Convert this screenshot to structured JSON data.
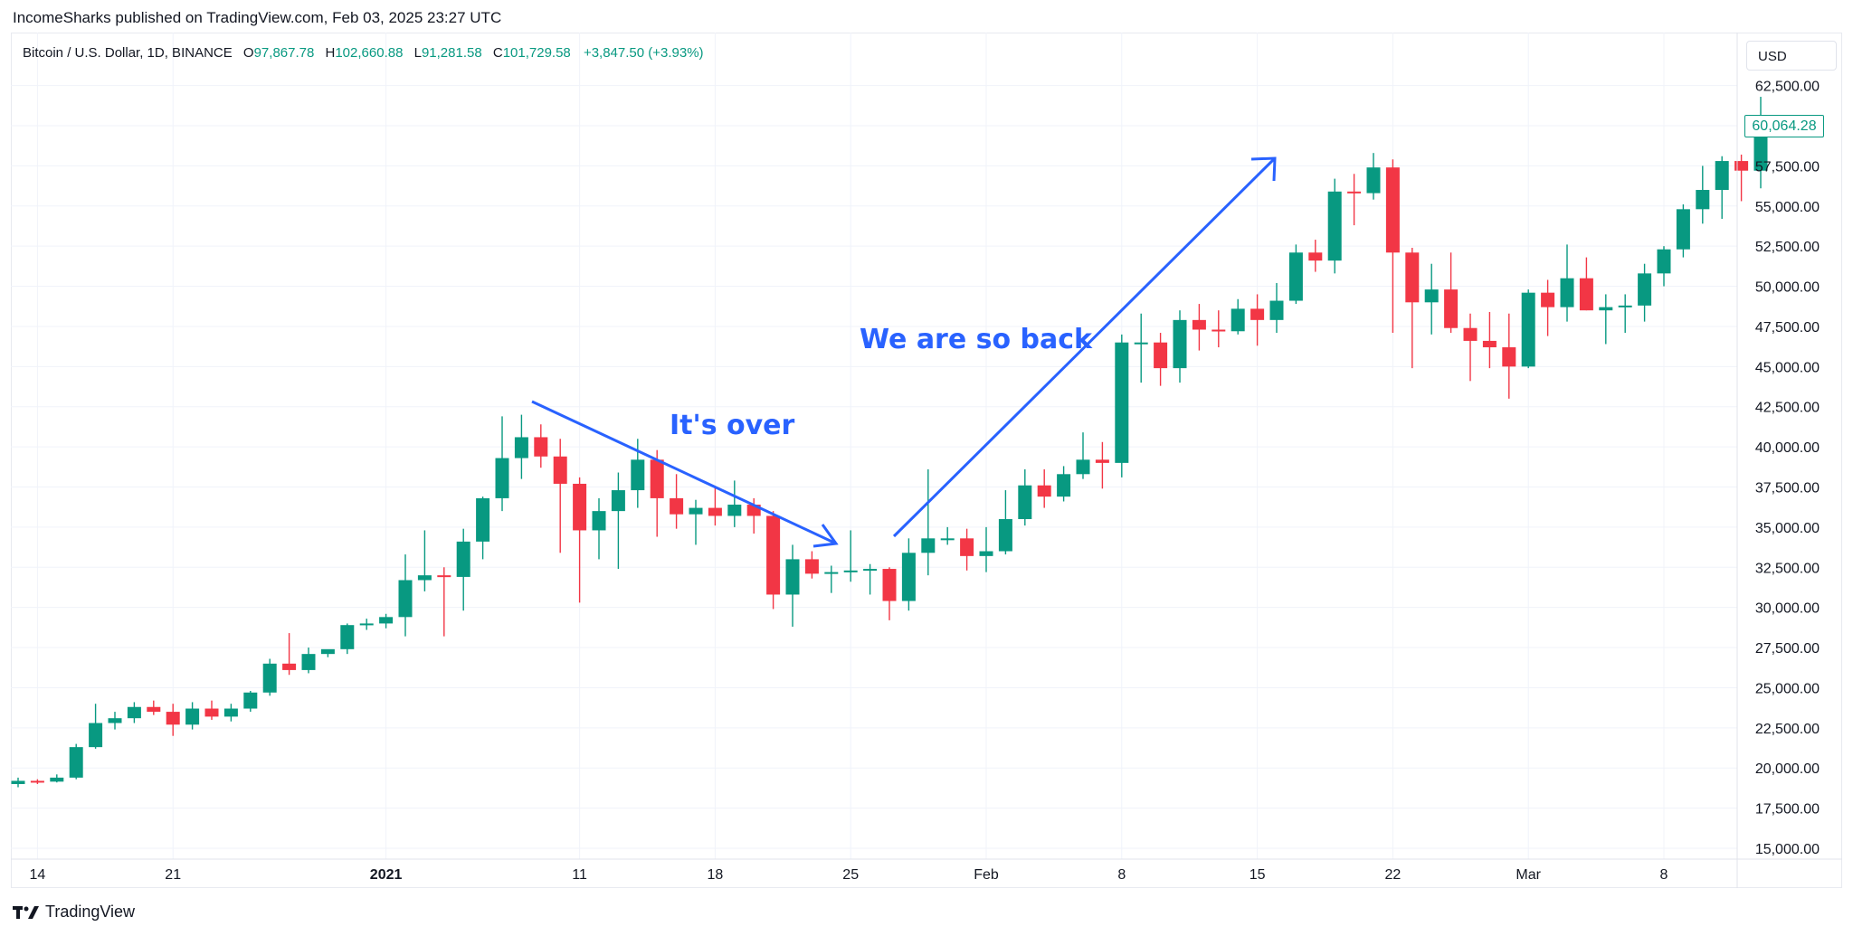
{
  "header": {
    "publisher_line": "IncomeSharks published on TradingView.com, Feb 03, 2025 23:27 UTC"
  },
  "legend": {
    "symbol": "Bitcoin / U.S. Dollar, 1D, BINANCE",
    "open_label": "O",
    "open": "97,867.78",
    "high_label": "H",
    "high": "102,660.88",
    "low_label": "L",
    "low": "91,281.58",
    "close_label": "C",
    "close": "101,729.58",
    "change": "+3,847.50 (+3.93%)"
  },
  "currency": "USD",
  "last_price_label": "60,064.28",
  "footer": {
    "brand": "TradingView"
  },
  "colors": {
    "up": "#089981",
    "down": "#f23645",
    "annotation": "#2962ff",
    "grid": "#f0f3fa"
  },
  "chart_data": {
    "type": "candlestick",
    "ylim": [
      14000,
      63500
    ],
    "y_ticks": [
      15000,
      17500,
      20000,
      22500,
      25000,
      27500,
      30000,
      32500,
      35000,
      37500,
      40000,
      42500,
      45000,
      47500,
      50000,
      52500,
      55000,
      57500,
      60000,
      62500
    ],
    "y_tick_labels": [
      "15,000.00",
      "17,500.00",
      "20,000.00",
      "22,500.00",
      "25,000.00",
      "27,500.00",
      "30,000.00",
      "32,500.00",
      "35,000.00",
      "37,500.00",
      "40,000.00",
      "42,500.00",
      "45,000.00",
      "47,500.00",
      "50,000.00",
      "52,500.00",
      "55,000.00",
      "57,500.00",
      "60,000.00",
      "62,500.00"
    ],
    "x_ticks": [
      {
        "index": 1,
        "label": "14",
        "bold": false
      },
      {
        "index": 8,
        "label": "21",
        "bold": false
      },
      {
        "index": 19,
        "label": "2021",
        "bold": true
      },
      {
        "index": 29,
        "label": "11",
        "bold": false
      },
      {
        "index": 36,
        "label": "18",
        "bold": false
      },
      {
        "index": 43,
        "label": "25",
        "bold": false
      },
      {
        "index": 50,
        "label": "Feb",
        "bold": false
      },
      {
        "index": 57,
        "label": "8",
        "bold": false
      },
      {
        "index": 64,
        "label": "15",
        "bold": false
      },
      {
        "index": 71,
        "label": "22",
        "bold": false
      },
      {
        "index": 78,
        "label": "Mar",
        "bold": false
      },
      {
        "index": 85,
        "label": "8",
        "bold": false
      }
    ],
    "candles": [
      [
        19000,
        19400,
        18800,
        19200
      ],
      [
        19200,
        19300,
        19000,
        19150
      ],
      [
        19150,
        19600,
        19100,
        19400
      ],
      [
        19400,
        21500,
        19300,
        21300
      ],
      [
        21300,
        24000,
        21200,
        22800
      ],
      [
        22800,
        23500,
        22400,
        23100
      ],
      [
        23100,
        24100,
        22800,
        23800
      ],
      [
        23800,
        24200,
        23300,
        23500
      ],
      [
        23500,
        24000,
        22000,
        22700
      ],
      [
        22700,
        24100,
        22400,
        23700
      ],
      [
        23700,
        24200,
        23000,
        23200
      ],
      [
        23200,
        24000,
        22900,
        23700
      ],
      [
        23700,
        24800,
        23500,
        24700
      ],
      [
        24700,
        26800,
        24500,
        26500
      ],
      [
        26500,
        28400,
        25800,
        26100
      ],
      [
        26100,
        27500,
        25900,
        27100
      ],
      [
        27100,
        27300,
        26900,
        27400
      ],
      [
        27400,
        29000,
        27100,
        28900
      ],
      [
        28900,
        29300,
        28600,
        29000
      ],
      [
        29000,
        29600,
        28700,
        29400
      ],
      [
        29400,
        33300,
        28200,
        31700
      ],
      [
        31700,
        34800,
        31000,
        32000
      ],
      [
        32000,
        32500,
        28200,
        31900
      ],
      [
        31900,
        34900,
        29800,
        34100
      ],
      [
        34100,
        36900,
        33000,
        36800
      ],
      [
        36800,
        41900,
        36000,
        39300
      ],
      [
        39300,
        42000,
        38000,
        40600
      ],
      [
        40600,
        41400,
        38700,
        39400
      ],
      [
        39400,
        40500,
        33400,
        37700
      ],
      [
        37700,
        38100,
        30300,
        34800
      ],
      [
        34800,
        36800,
        33000,
        36000
      ],
      [
        36000,
        38400,
        32400,
        37300
      ],
      [
        37300,
        40500,
        36200,
        39200
      ],
      [
        39200,
        39800,
        34400,
        36800
      ],
      [
        36800,
        38300,
        34900,
        35800
      ],
      [
        35800,
        36700,
        33900,
        36200
      ],
      [
        36200,
        37500,
        35100,
        35700
      ],
      [
        35700,
        37900,
        35000,
        36400
      ],
      [
        36400,
        36800,
        34600,
        35700
      ],
      [
        35700,
        36000,
        29900,
        30800
      ],
      [
        30800,
        33900,
        28800,
        33000
      ],
      [
        33000,
        33500,
        31800,
        32100
      ],
      [
        32100,
        32600,
        30900,
        32200
      ],
      [
        32200,
        34800,
        31600,
        32300
      ],
      [
        32300,
        32700,
        30800,
        32400
      ],
      [
        32400,
        32500,
        29200,
        30400
      ],
      [
        30400,
        34300,
        29800,
        33400
      ],
      [
        33400,
        38600,
        32000,
        34300
      ],
      [
        34300,
        35000,
        33900,
        34300
      ],
      [
        34300,
        34900,
        32300,
        33200
      ],
      [
        33200,
        35000,
        32200,
        33500
      ],
      [
        33500,
        37300,
        33300,
        35500
      ],
      [
        35500,
        38600,
        35100,
        37600
      ],
      [
        37600,
        38600,
        36200,
        36900
      ],
      [
        36900,
        38800,
        36600,
        38300
      ],
      [
        38300,
        40900,
        38000,
        39200
      ],
      [
        39200,
        40300,
        37400,
        39000
      ],
      [
        39000,
        47000,
        38100,
        46500
      ],
      [
        46500,
        48300,
        44000,
        46500
      ],
      [
        46500,
        47100,
        43800,
        44900
      ],
      [
        44900,
        48500,
        44000,
        47900
      ],
      [
        47900,
        48900,
        46000,
        47300
      ],
      [
        47300,
        48500,
        46200,
        47200
      ],
      [
        47200,
        49200,
        47000,
        48600
      ],
      [
        48600,
        49500,
        46300,
        47900
      ],
      [
        47900,
        50200,
        47100,
        49100
      ],
      [
        49100,
        52600,
        48900,
        52100
      ],
      [
        52100,
        52900,
        50900,
        51600
      ],
      [
        51600,
        56700,
        50800,
        55900
      ],
      [
        55900,
        57000,
        53800,
        55800
      ],
      [
        55800,
        58300,
        55400,
        57400
      ],
      [
        57400,
        57900,
        47100,
        52100
      ],
      [
        52100,
        52400,
        44900,
        49000
      ],
      [
        49000,
        51400,
        47000,
        49800
      ],
      [
        49800,
        52100,
        47100,
        47400
      ],
      [
        47400,
        48300,
        44100,
        46600
      ],
      [
        46600,
        48400,
        44900,
        46200
      ],
      [
        46200,
        48300,
        43000,
        45000
      ],
      [
        45000,
        49800,
        44900,
        49600
      ],
      [
        49600,
        50400,
        46900,
        48700
      ],
      [
        48700,
        52600,
        47800,
        50500
      ],
      [
        50500,
        51800,
        48500,
        48500
      ],
      [
        48500,
        49500,
        46400,
        48700
      ],
      [
        48700,
        49500,
        47100,
        48800
      ],
      [
        48800,
        51400,
        47800,
        50800
      ],
      [
        50800,
        52500,
        50000,
        52300
      ],
      [
        52300,
        55100,
        51800,
        54800
      ],
      [
        54800,
        57500,
        53900,
        56000
      ],
      [
        56000,
        58100,
        54200,
        57800
      ],
      [
        57800,
        58200,
        55300,
        57200
      ],
      [
        57200,
        61800,
        56100,
        60064
      ]
    ],
    "annotations": [
      {
        "text": "It's over"
      },
      {
        "text": "We are so back"
      }
    ]
  }
}
